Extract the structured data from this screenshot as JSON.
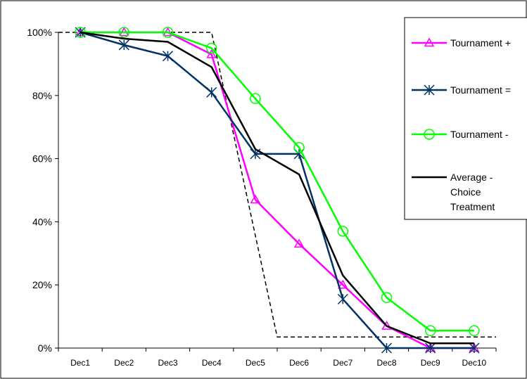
{
  "chart_data": {
    "type": "line",
    "categories": [
      "Dec1",
      "Dec2",
      "Dec3",
      "Dec4",
      "Dec5",
      "Dec6",
      "Dec7",
      "Dec8",
      "Dec9",
      "Dec10"
    ],
    "y_ticks": [
      "0%",
      "20%",
      "40%",
      "60%",
      "80%",
      "100%"
    ],
    "ylim": [
      0,
      100
    ],
    "legend_position": "right",
    "series": [
      {
        "name": "Tournament +",
        "color": "#ff00ff",
        "marker": "triangle",
        "values": [
          100,
          100,
          100,
          93,
          47,
          33,
          20,
          7,
          0,
          0
        ]
      },
      {
        "name": "Tournament =",
        "color": "#003366",
        "marker": "asterisk",
        "values": [
          100,
          96,
          92.5,
          81,
          61.5,
          61.5,
          15.5,
          0,
          0,
          0
        ]
      },
      {
        "name": "Tournament -",
        "color": "#00ff00",
        "marker": "circle",
        "values": [
          100,
          100,
          100,
          95,
          79,
          63.5,
          37,
          16,
          5.5,
          5.5
        ]
      },
      {
        "name": "Average - Choice Treatment",
        "name_lines": [
          "Average -",
          "Choice",
          "Treatment"
        ],
        "color": "#000000",
        "marker": "none",
        "values": [
          100,
          98,
          97,
          89,
          63,
          55,
          23,
          7,
          1.5,
          1.5
        ]
      }
    ],
    "reference_line": {
      "style": "dashed",
      "color": "#000000",
      "points": [
        [
          0.5,
          100
        ],
        [
          4,
          100
        ],
        [
          5.5,
          3.5
        ],
        [
          10.5,
          3.5
        ]
      ]
    }
  }
}
